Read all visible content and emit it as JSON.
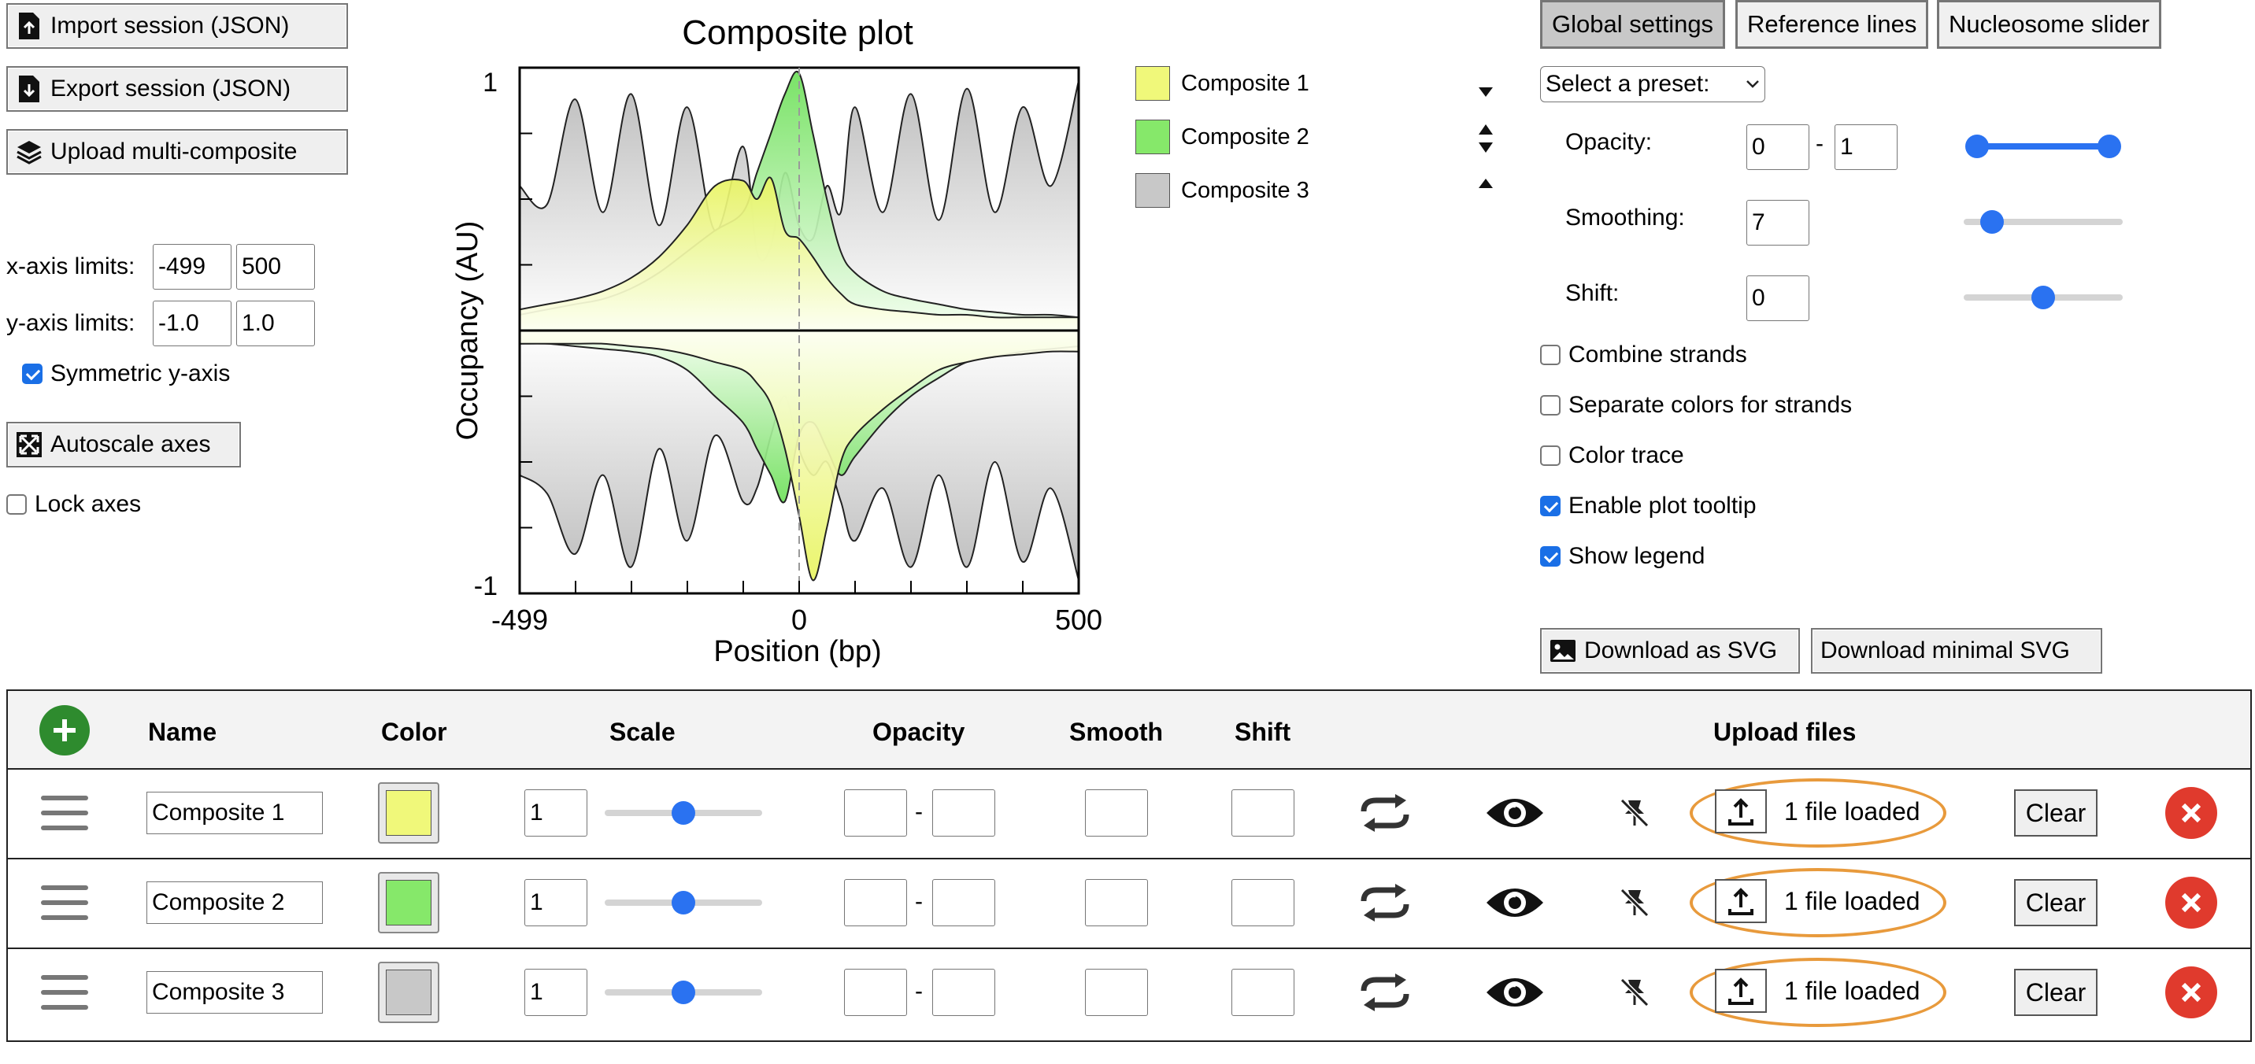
{
  "left_panel": {
    "import_label": "Import session (JSON)",
    "export_label": "Export session (JSON)",
    "upload_label": "Upload multi-composite",
    "xaxis_label": "x-axis limits:",
    "xaxis_min": "-499",
    "xaxis_max": "500",
    "yaxis_label": "y-axis limits:",
    "yaxis_min": "-1.0",
    "yaxis_max": "1.0",
    "symmetric_label": "Symmetric y-axis",
    "symmetric_checked": true,
    "autoscale_label": "Autoscale axes",
    "lock_label": "Lock axes",
    "lock_checked": false
  },
  "plot": {
    "title": "Composite plot",
    "xlabel": "Position (bp)",
    "ylabel": "Occupancy (AU)",
    "ytick_top": "1",
    "ytick_bottom": "-1",
    "xtick_left": "-499",
    "xtick_mid": "0",
    "xtick_right": "500"
  },
  "chart_data": {
    "type": "area",
    "title": "Composite plot",
    "xlabel": "Position (bp)",
    "ylabel": "Occupancy (AU)",
    "xlim": [
      -499,
      500
    ],
    "ylim": [
      -1,
      1
    ],
    "legend_position": "right",
    "x": [
      -499,
      -450,
      -400,
      -350,
      -300,
      -250,
      -200,
      -150,
      -100,
      -75,
      -50,
      -25,
      0,
      25,
      50,
      75,
      100,
      150,
      200,
      250,
      300,
      350,
      400,
      450,
      500
    ],
    "series": [
      {
        "name": "Composite 1",
        "color": "#f0f87a",
        "forward": [
          0.08,
          0.1,
          0.12,
          0.15,
          0.2,
          0.28,
          0.4,
          0.55,
          0.57,
          0.5,
          0.58,
          0.38,
          0.35,
          0.28,
          0.2,
          0.14,
          0.1,
          0.08,
          0.07,
          0.06,
          0.06,
          0.05,
          0.05,
          0.05,
          0.05
        ],
        "reverse": [
          -0.05,
          -0.05,
          -0.05,
          -0.05,
          -0.06,
          -0.07,
          -0.09,
          -0.12,
          -0.15,
          -0.2,
          -0.28,
          -0.45,
          -0.7,
          -0.95,
          -0.75,
          -0.5,
          -0.4,
          -0.3,
          -0.22,
          -0.15,
          -0.12,
          -0.1,
          -0.09,
          -0.08,
          -0.08
        ]
      },
      {
        "name": "Composite 2",
        "color": "#86e86a",
        "forward": [
          0.06,
          0.08,
          0.1,
          0.12,
          0.16,
          0.22,
          0.3,
          0.38,
          0.45,
          0.6,
          0.75,
          0.9,
          0.98,
          0.75,
          0.5,
          0.3,
          0.22,
          0.15,
          0.12,
          0.1,
          0.08,
          0.07,
          0.06,
          0.06,
          0.05
        ],
        "reverse": [
          -0.05,
          -0.05,
          -0.06,
          -0.07,
          -0.08,
          -0.1,
          -0.15,
          -0.25,
          -0.35,
          -0.45,
          -0.55,
          -0.65,
          -0.4,
          -0.35,
          -0.45,
          -0.55,
          -0.48,
          -0.35,
          -0.25,
          -0.18,
          -0.12,
          -0.1,
          -0.08,
          -0.07,
          -0.06
        ]
      },
      {
        "name": "Composite 3",
        "color": "#c8c8c8",
        "forward": [
          0.55,
          0.48,
          0.88,
          0.45,
          0.9,
          0.4,
          0.85,
          0.38,
          0.7,
          0.3,
          0.32,
          0.6,
          0.4,
          0.35,
          0.55,
          0.45,
          0.85,
          0.45,
          0.9,
          0.42,
          0.92,
          0.45,
          0.85,
          0.55,
          0.95
        ],
        "reverse": [
          -0.55,
          -0.62,
          -0.85,
          -0.55,
          -0.9,
          -0.45,
          -0.8,
          -0.4,
          -0.65,
          -0.6,
          -0.4,
          -0.25,
          -0.45,
          -0.55,
          -0.5,
          -0.65,
          -0.8,
          -0.6,
          -0.9,
          -0.55,
          -0.9,
          -0.5,
          -0.88,
          -0.6,
          -0.95
        ]
      }
    ]
  },
  "legend_items": [
    {
      "label": "Composite 1",
      "color": "#f0f87a"
    },
    {
      "label": "Composite 2",
      "color": "#86e86a"
    },
    {
      "label": "Composite 3",
      "color": "#c8c8c8"
    }
  ],
  "tabs": {
    "global_settings": "Global settings",
    "reference_lines": "Reference lines",
    "nucleosome_slider": "Nucleosome slider"
  },
  "settings": {
    "preset_label": "Select a preset:",
    "opacity_label": "Opacity:",
    "opacity_min": "0",
    "opacity_dash": "-",
    "opacity_max": "1",
    "opacity_range": [
      0,
      1
    ],
    "smoothing_label": "Smoothing:",
    "smoothing_value": "7",
    "smoothing_fraction": 0.18,
    "shift_label": "Shift:",
    "shift_value": "0",
    "shift_fraction": 0.5,
    "combine_label": "Combine strands",
    "combine_checked": false,
    "separate_label": "Separate colors for strands",
    "separate_checked": false,
    "color_trace_label": "Color trace",
    "color_trace_checked": false,
    "tooltip_label": "Enable plot tooltip",
    "tooltip_checked": true,
    "legend_label": "Show legend",
    "legend_checked": true,
    "download_svg_label": "Download as SVG",
    "download_min_label": "Download minimal SVG"
  },
  "table": {
    "headers": {
      "name": "Name",
      "color": "Color",
      "scale": "Scale",
      "opacity": "Opacity",
      "smooth": "Smooth",
      "shift": "Shift",
      "upload": "Upload files"
    },
    "rows": [
      {
        "name": "Composite 1",
        "color": "#f0f87a",
        "scale": "1",
        "scale_fraction": 0.5,
        "opacity_dash": "-",
        "files": "1 file loaded",
        "clear": "Clear"
      },
      {
        "name": "Composite 2",
        "color": "#86e86a",
        "scale": "1",
        "scale_fraction": 0.5,
        "opacity_dash": "-",
        "files": "1 file loaded",
        "clear": "Clear"
      },
      {
        "name": "Composite 3",
        "color": "#c8c8c8",
        "scale": "1",
        "scale_fraction": 0.5,
        "opacity_dash": "-",
        "files": "1 file loaded",
        "clear": "Clear"
      }
    ]
  }
}
